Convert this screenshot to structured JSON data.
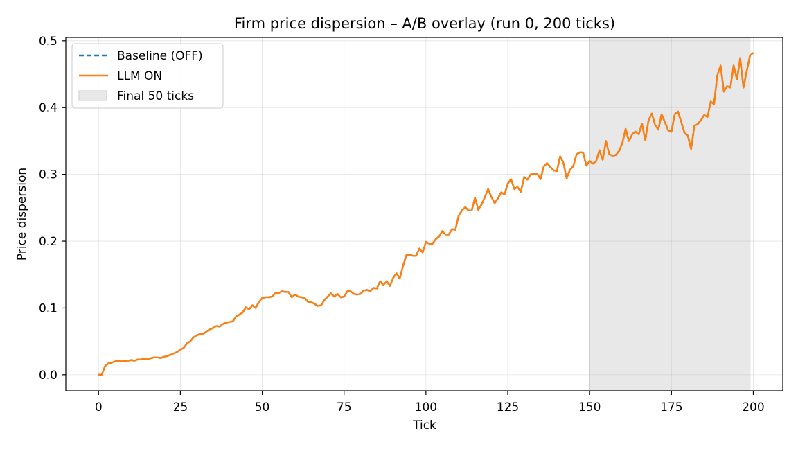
{
  "chart_data": {
    "type": "line",
    "title": "Firm price dispersion – A/B overlay (run 0, 200 ticks)",
    "xlabel": "Tick",
    "ylabel": "Price dispersion",
    "xlim": [
      -10,
      209
    ],
    "ylim": [
      -0.024,
      0.505
    ],
    "xticks": [
      0,
      25,
      50,
      75,
      100,
      125,
      150,
      175,
      200
    ],
    "yticks": [
      0.0,
      0.1,
      0.2,
      0.3,
      0.4,
      0.5
    ],
    "xtick_labels": [
      "0",
      "25",
      "50",
      "75",
      "100",
      "125",
      "150",
      "175",
      "200"
    ],
    "ytick_labels": [
      "0.0",
      "0.1",
      "0.2",
      "0.3",
      "0.4",
      "0.5"
    ],
    "grid": true,
    "legend_position": "upper-left",
    "shaded_region": {
      "label": "Final 50 ticks",
      "x_start": 150,
      "x_end": 199,
      "color": "#e8e8e8"
    },
    "series": [
      {
        "name": "Baseline (OFF)",
        "style": "dashed",
        "color": "#1f77b4",
        "same_as": "LLM ON"
      },
      {
        "name": "LLM ON",
        "style": "solid",
        "color": "#ff7f0e"
      }
    ],
    "x_start": 0,
    "values": [
      0.0,
      0.0,
      0.013,
      0.017,
      0.018,
      0.02,
      0.021,
      0.02,
      0.021,
      0.021,
      0.022,
      0.021,
      0.023,
      0.023,
      0.024,
      0.023,
      0.025,
      0.026,
      0.026,
      0.025,
      0.027,
      0.028,
      0.03,
      0.032,
      0.034,
      0.038,
      0.04,
      0.047,
      0.05,
      0.056,
      0.059,
      0.061,
      0.061,
      0.065,
      0.068,
      0.07,
      0.073,
      0.072,
      0.076,
      0.078,
      0.079,
      0.08,
      0.087,
      0.09,
      0.093,
      0.101,
      0.098,
      0.104,
      0.1,
      0.109,
      0.115,
      0.116,
      0.116,
      0.117,
      0.122,
      0.122,
      0.125,
      0.124,
      0.124,
      0.116,
      0.12,
      0.117,
      0.116,
      0.115,
      0.109,
      0.109,
      0.106,
      0.103,
      0.104,
      0.112,
      0.117,
      0.122,
      0.117,
      0.121,
      0.116,
      0.117,
      0.125,
      0.125,
      0.121,
      0.12,
      0.121,
      0.126,
      0.127,
      0.125,
      0.13,
      0.129,
      0.14,
      0.134,
      0.14,
      0.133,
      0.145,
      0.152,
      0.144,
      0.163,
      0.179,
      0.18,
      0.178,
      0.178,
      0.189,
      0.183,
      0.199,
      0.196,
      0.196,
      0.203,
      0.207,
      0.215,
      0.21,
      0.21,
      0.218,
      0.217,
      0.238,
      0.246,
      0.251,
      0.246,
      0.246,
      0.265,
      0.247,
      0.255,
      0.266,
      0.278,
      0.266,
      0.257,
      0.264,
      0.273,
      0.27,
      0.286,
      0.293,
      0.278,
      0.281,
      0.274,
      0.296,
      0.292,
      0.3,
      0.301,
      0.301,
      0.293,
      0.312,
      0.317,
      0.311,
      0.306,
      0.305,
      0.327,
      0.317,
      0.294,
      0.307,
      0.312,
      0.33,
      0.333,
      0.333,
      0.313,
      0.32,
      0.316,
      0.32,
      0.336,
      0.322,
      0.35,
      0.33,
      0.328,
      0.329,
      0.335,
      0.347,
      0.368,
      0.35,
      0.36,
      0.364,
      0.36,
      0.376,
      0.351,
      0.381,
      0.391,
      0.374,
      0.367,
      0.39,
      0.378,
      0.366,
      0.364,
      0.39,
      0.394,
      0.378,
      0.362,
      0.358,
      0.338,
      0.373,
      0.375,
      0.381,
      0.389,
      0.386,
      0.409,
      0.405,
      0.448,
      0.463,
      0.424,
      0.432,
      0.43,
      0.463,
      0.442,
      0.474,
      0.43,
      0.455,
      0.478,
      0.482
    ]
  }
}
